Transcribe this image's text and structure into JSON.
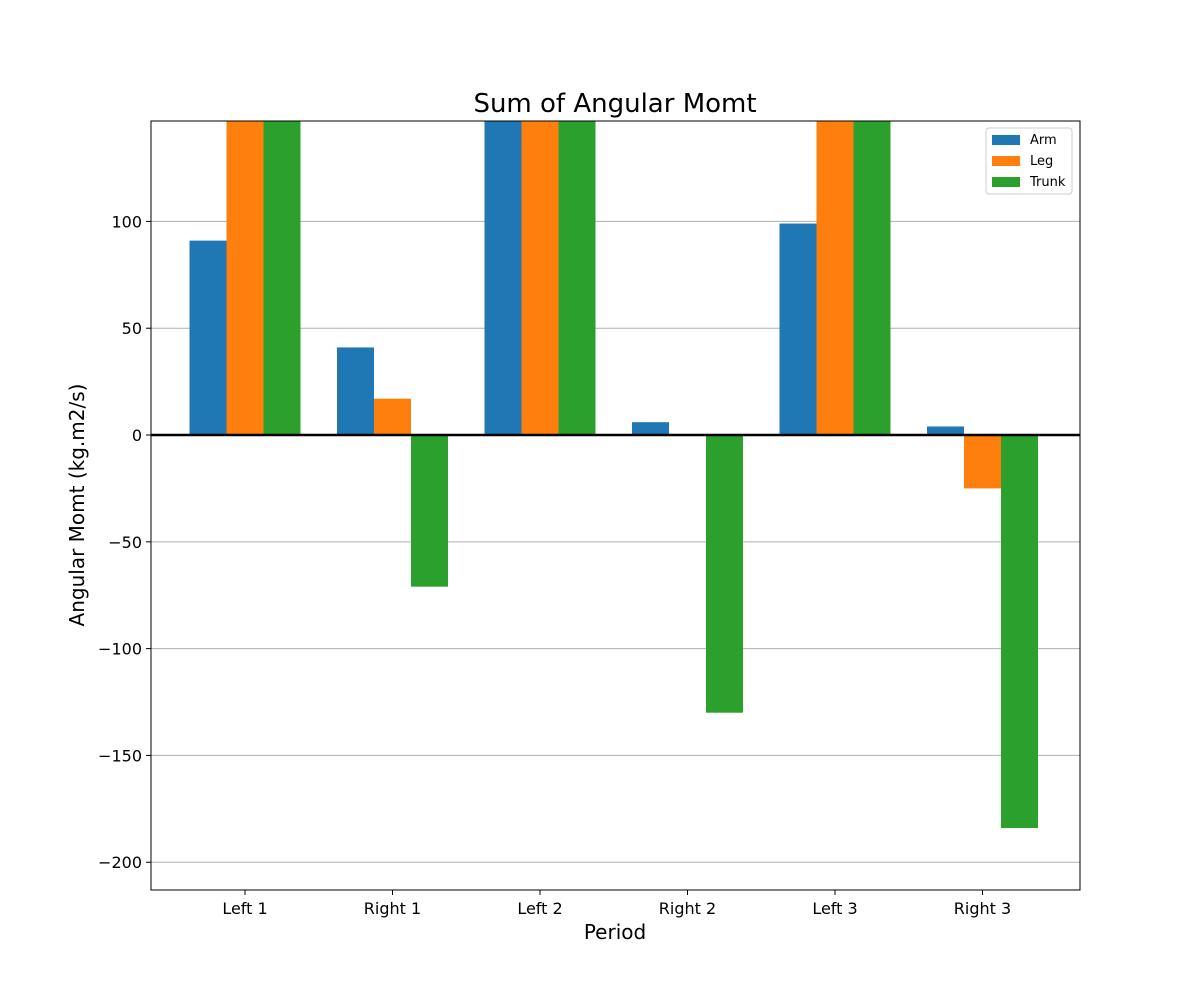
{
  "chart_data": {
    "type": "bar",
    "title": "Sum of Angular Momt",
    "xlabel": "Period",
    "ylabel": "Angular Momt (kg.m2/s)",
    "categories": [
      "Left 1",
      "Right 1",
      "Left 2",
      "Right 2",
      "Left 3",
      "Right 3"
    ],
    "series": [
      {
        "name": "Arm",
        "color": "#1f77b4",
        "values": [
          91,
          41,
          160,
          6,
          99,
          4
        ]
      },
      {
        "name": "Leg",
        "color": "#ff7f0e",
        "values": [
          160,
          17,
          160,
          0,
          160,
          -25
        ]
      },
      {
        "name": "Trunk",
        "color": "#2ca02c",
        "values": [
          160,
          -71,
          160,
          -130,
          160,
          -184
        ]
      }
    ],
    "ylim": [
      -213,
      147
    ],
    "yticks": [
      100,
      50,
      0,
      -50,
      -100,
      -150,
      -200
    ],
    "ytick_labels": [
      "100",
      "50",
      "0",
      "−50",
      "−100",
      "−150",
      "−200"
    ],
    "grid": "y",
    "legend": "upper right"
  }
}
